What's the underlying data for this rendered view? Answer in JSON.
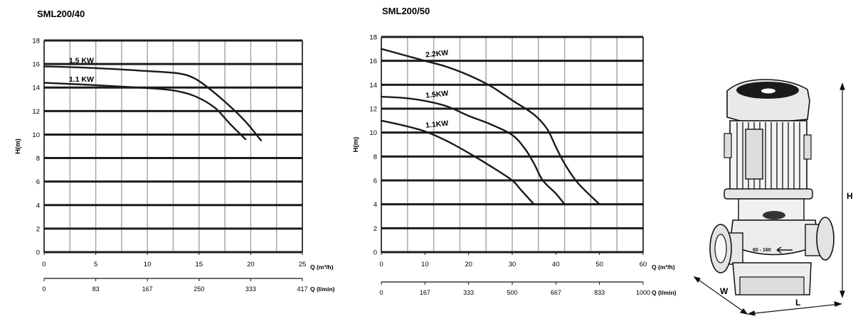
{
  "chart_data": [
    {
      "type": "line",
      "title": "SML200/40",
      "ylabel": "H(m)",
      "xlabel": "Q (m³/h)",
      "x2label": "Q (l/min)",
      "xlim": [
        0,
        25
      ],
      "ylim": [
        0,
        18
      ],
      "x_ticks": [
        0,
        5,
        10,
        15,
        20,
        25
      ],
      "x2_ticks": [
        "0",
        "83",
        "167",
        "250",
        "333",
        "417"
      ],
      "y_ticks": [
        0,
        2,
        4,
        6,
        8,
        10,
        12,
        14,
        16,
        18
      ],
      "grid": true,
      "series": [
        {
          "name": "1.5 KW",
          "points": [
            [
              0,
              15.8
            ],
            [
              5,
              15.65
            ],
            [
              10,
              15.4
            ],
            [
              13,
              15.2
            ],
            [
              14.5,
              14.8
            ],
            [
              16,
              13.9
            ],
            [
              18,
              12.4
            ],
            [
              19.5,
              11.1
            ],
            [
              21,
              9.5
            ]
          ]
        },
        {
          "name": "1.1 KW",
          "points": [
            [
              0,
              14.4
            ],
            [
              5,
              14.2
            ],
            [
              10,
              13.95
            ],
            [
              12.5,
              13.75
            ],
            [
              14.5,
              13.3
            ],
            [
              16.5,
              12.3
            ],
            [
              18,
              10.9
            ],
            [
              19.5,
              9.6
            ]
          ]
        }
      ]
    },
    {
      "type": "line",
      "title": "SML200/50",
      "ylabel": "H(m)",
      "xlabel": "Q (m³/h)",
      "x2label": "Q (l/min)",
      "xlim": [
        0,
        60
      ],
      "ylim": [
        0,
        18
      ],
      "x_ticks": [
        0,
        10,
        20,
        30,
        40,
        50,
        60
      ],
      "x2_ticks": [
        "0",
        "167",
        "333",
        "500",
        "667",
        "833",
        "1000"
      ],
      "y_ticks": [
        0,
        2,
        4,
        6,
        8,
        10,
        12,
        14,
        16,
        18
      ],
      "grid": true,
      "series": [
        {
          "name": "2.2KW",
          "points": [
            [
              0,
              17.0
            ],
            [
              5,
              16.5
            ],
            [
              10,
              16.0
            ],
            [
              15,
              15.5
            ],
            [
              20,
              14.8
            ],
            [
              25,
              13.9
            ],
            [
              30,
              12.7
            ],
            [
              35,
              11.5
            ],
            [
              38,
              10.3
            ],
            [
              40,
              8.8
            ],
            [
              42,
              7.4
            ],
            [
              45,
              5.8
            ],
            [
              50,
              4.0
            ]
          ]
        },
        {
          "name": "1.5KW",
          "points": [
            [
              0,
              13.0
            ],
            [
              5,
              12.9
            ],
            [
              10,
              12.65
            ],
            [
              15,
              12.2
            ],
            [
              20,
              11.4
            ],
            [
              25,
              10.7
            ],
            [
              30,
              9.8
            ],
            [
              33,
              8.6
            ],
            [
              35,
              7.4
            ],
            [
              37,
              6.0
            ],
            [
              40,
              4.9
            ],
            [
              42,
              4.0
            ]
          ]
        },
        {
          "name": "1.1KW",
          "points": [
            [
              0,
              11.0
            ],
            [
              5,
              10.6
            ],
            [
              10,
              10.1
            ],
            [
              15,
              9.3
            ],
            [
              20,
              8.3
            ],
            [
              25,
              7.2
            ],
            [
              30,
              6.0
            ],
            [
              32,
              5.2
            ],
            [
              35,
              4.0
            ]
          ]
        }
      ]
    }
  ],
  "diagram": {
    "label_h": "H",
    "label_w": "W",
    "label_l": "L",
    "flange_text": "60 - 160"
  }
}
